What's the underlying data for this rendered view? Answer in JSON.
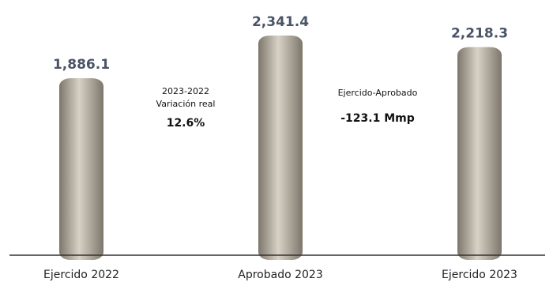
{
  "chart_data": {
    "type": "bar",
    "categories": [
      "Ejercido 2022",
      "Aprobado 2023",
      "Ejercido 2023"
    ],
    "values": [
      1886.1,
      2341.4,
      2218.3
    ],
    "value_labels": [
      "1,886.1",
      "2,341.4",
      "2,218.3"
    ],
    "title": "",
    "xlabel": "",
    "ylabel": "",
    "ylim": [
      0,
      2341.4
    ],
    "grid": false,
    "legend": "none",
    "colors": {
      "bar_dark": "#7d766b",
      "bar_light": "#d8d2c6",
      "value_label": "#4a5468",
      "baseline": "#333333"
    }
  },
  "annotations": {
    "variation": {
      "line1": "2023-2022",
      "line2": "Variación real",
      "value": "12.6%"
    },
    "difference": {
      "label": "Ejercido-Aprobado",
      "value": "-123.1 Mmp"
    }
  }
}
